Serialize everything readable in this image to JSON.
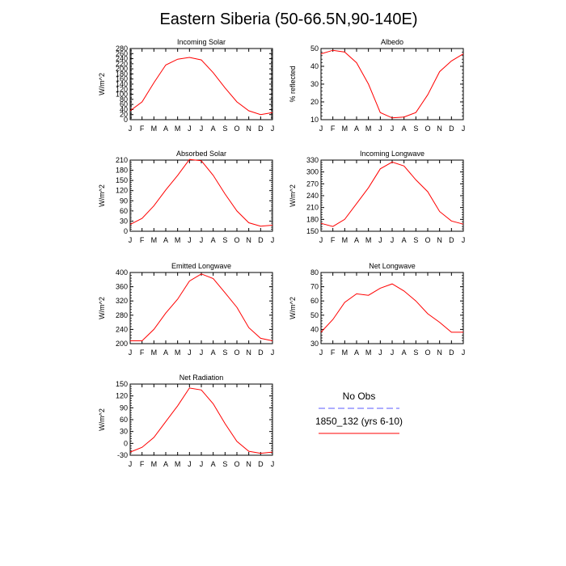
{
  "figure": {
    "title": "Eastern Siberia (50-66.5N,90-140E)"
  },
  "legend": {
    "entries": [
      {
        "label": "No Obs",
        "color": "#5b5bff",
        "style": "dashed"
      },
      {
        "label": "1850_132 (yrs 6-10)",
        "color": "#ff0000",
        "style": "solid"
      }
    ]
  },
  "chart_data": [
    {
      "type": "line",
      "title": "Incoming Solar",
      "ylabel": "W/m^2",
      "categories": [
        "J",
        "F",
        "M",
        "A",
        "M",
        "J",
        "J",
        "A",
        "S",
        "O",
        "N",
        "D",
        "J"
      ],
      "ylim": [
        0,
        280
      ],
      "yticks": [
        0,
        20,
        40,
        60,
        80,
        100,
        120,
        140,
        160,
        180,
        200,
        220,
        240,
        260,
        280
      ],
      "series": [
        {
          "name": "1850_132 (yrs 6-10)",
          "color": "#ff0000",
          "values": [
            35,
            70,
            145,
            215,
            238,
            245,
            235,
            185,
            125,
            70,
            35,
            20,
            28
          ]
        }
      ]
    },
    {
      "type": "line",
      "title": "Albedo",
      "ylabel": "% reflected",
      "categories": [
        "J",
        "F",
        "M",
        "A",
        "M",
        "J",
        "J",
        "A",
        "S",
        "O",
        "N",
        "D",
        "J"
      ],
      "ylim": [
        10,
        50
      ],
      "yticks": [
        10,
        20,
        30,
        40,
        50
      ],
      "series": [
        {
          "name": "1850_132 (yrs 6-10)",
          "color": "#ff0000",
          "values": [
            47,
            49,
            48,
            42,
            30,
            14,
            11,
            11.5,
            14,
            24,
            37,
            43,
            47
          ]
        }
      ]
    },
    {
      "type": "line",
      "title": "Absorbed Solar",
      "ylabel": "W/m^2",
      "categories": [
        "J",
        "F",
        "M",
        "A",
        "M",
        "J",
        "J",
        "A",
        "S",
        "O",
        "N",
        "D",
        "J"
      ],
      "ylim": [
        0,
        210
      ],
      "yticks": [
        0,
        30,
        60,
        90,
        120,
        150,
        180,
        210
      ],
      "series": [
        {
          "name": "1850_132 (yrs 6-10)",
          "color": "#ff0000",
          "values": [
            20,
            38,
            75,
            122,
            165,
            212,
            208,
            165,
            110,
            60,
            25,
            15,
            18
          ]
        }
      ]
    },
    {
      "type": "line",
      "title": "Incoming Longwave",
      "ylabel": "W/m^2",
      "categories": [
        "J",
        "F",
        "M",
        "A",
        "M",
        "J",
        "J",
        "A",
        "S",
        "O",
        "N",
        "D",
        "J"
      ],
      "ylim": [
        150,
        330
      ],
      "yticks": [
        150,
        180,
        210,
        240,
        270,
        300,
        330
      ],
      "series": [
        {
          "name": "1850_132 (yrs 6-10)",
          "color": "#ff0000",
          "values": [
            170,
            162,
            180,
            220,
            260,
            308,
            325,
            315,
            280,
            250,
            200,
            176,
            168
          ]
        }
      ]
    },
    {
      "type": "line",
      "title": "Emitted Longwave",
      "ylabel": "W/m^2",
      "categories": [
        "J",
        "F",
        "M",
        "A",
        "M",
        "J",
        "J",
        "A",
        "S",
        "O",
        "N",
        "D",
        "J"
      ],
      "ylim": [
        200,
        400
      ],
      "yticks": [
        200,
        240,
        280,
        320,
        360,
        400
      ],
      "series": [
        {
          "name": "1850_132 (yrs 6-10)",
          "color": "#ff0000",
          "values": [
            208,
            208,
            240,
            286,
            325,
            376,
            396,
            383,
            343,
            302,
            245,
            215,
            208
          ]
        }
      ]
    },
    {
      "type": "line",
      "title": "Net Longwave",
      "ylabel": "W/m^2",
      "categories": [
        "J",
        "F",
        "M",
        "A",
        "M",
        "J",
        "J",
        "A",
        "S",
        "O",
        "N",
        "D",
        "J"
      ],
      "ylim": [
        30,
        80
      ],
      "yticks": [
        30,
        40,
        50,
        60,
        70,
        80
      ],
      "series": [
        {
          "name": "1850_132 (yrs 6-10)",
          "color": "#ff0000",
          "values": [
            38,
            47,
            59,
            65,
            64,
            69,
            72,
            67,
            60,
            51,
            45,
            38,
            38
          ]
        }
      ]
    },
    {
      "type": "line",
      "title": "Net Radiation",
      "ylabel": "W/m^2",
      "categories": [
        "J",
        "F",
        "M",
        "A",
        "M",
        "J",
        "J",
        "A",
        "S",
        "O",
        "N",
        "D",
        "J"
      ],
      "ylim": [
        -30,
        150
      ],
      "yticks": [
        -30,
        0,
        30,
        60,
        90,
        120,
        150
      ],
      "series": [
        {
          "name": "1850_132 (yrs 6-10)",
          "color": "#ff0000",
          "values": [
            -22,
            -10,
            15,
            55,
            95,
            140,
            135,
            100,
            50,
            5,
            -20,
            -25,
            -22
          ]
        }
      ]
    }
  ]
}
